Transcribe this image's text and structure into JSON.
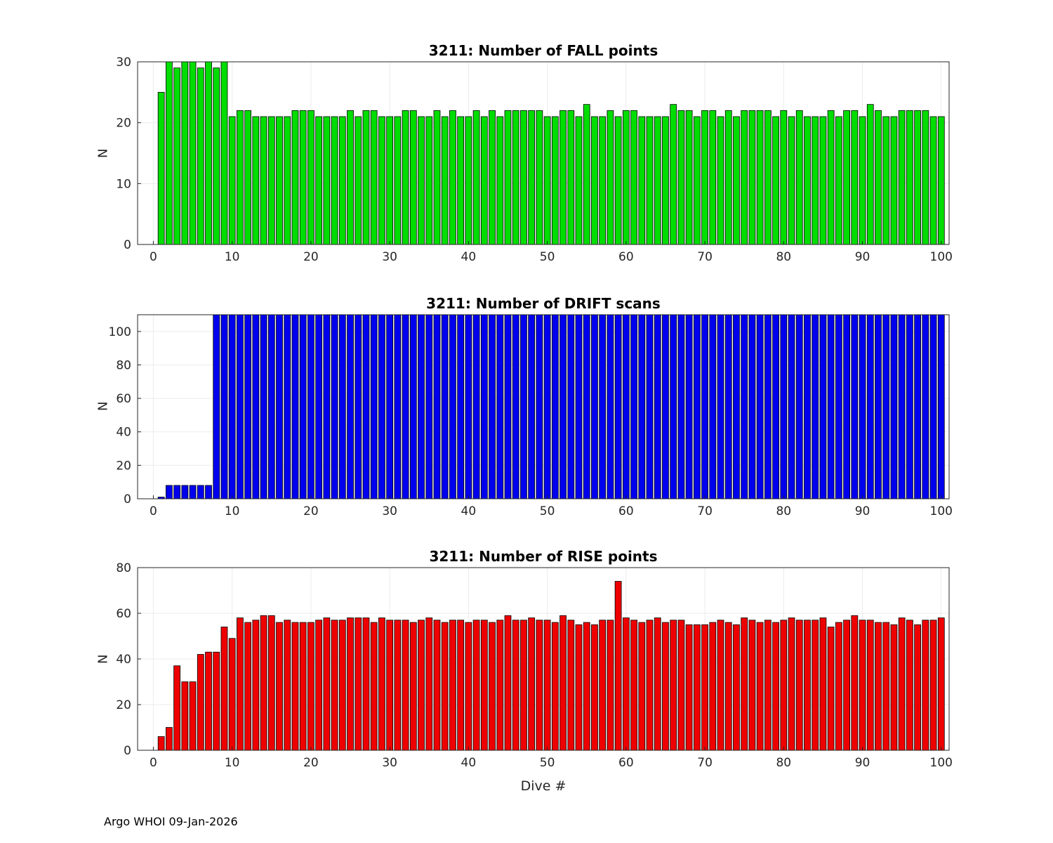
{
  "figure": {
    "footer": "Argo WHOI 09-Jan-2026"
  },
  "chart_data": [
    {
      "type": "bar",
      "name": "fall-points",
      "title": "3211: Number of FALL points",
      "xlabel": "",
      "ylabel": "N",
      "bar_color": "#00dd00",
      "bar_edge_color": "#000000",
      "grid": true,
      "legend": false,
      "xlim": [
        -2,
        101
      ],
      "ylim": [
        0,
        30
      ],
      "xticks": [
        0,
        10,
        20,
        30,
        40,
        50,
        60,
        70,
        80,
        90,
        100
      ],
      "yticks": [
        0,
        10,
        20,
        30
      ],
      "x_start": 1,
      "values": [
        25,
        30,
        29,
        30,
        30,
        29,
        30,
        29,
        30,
        21,
        22,
        22,
        21,
        21,
        21,
        21,
        21,
        22,
        22,
        22,
        21,
        21,
        21,
        21,
        22,
        21,
        22,
        22,
        21,
        21,
        21,
        22,
        22,
        21,
        21,
        22,
        21,
        22,
        21,
        21,
        22,
        21,
        22,
        21,
        22,
        22,
        22,
        22,
        22,
        21,
        21,
        22,
        22,
        21,
        23,
        21,
        21,
        22,
        21,
        22,
        22,
        21,
        21,
        21,
        21,
        23,
        22,
        22,
        21,
        22,
        22,
        21,
        22,
        21,
        22,
        22,
        22,
        22,
        21,
        22,
        21,
        22,
        21,
        21,
        21,
        22,
        21,
        22,
        22,
        21,
        23,
        22,
        21,
        21,
        22,
        22,
        22,
        22,
        21,
        21
      ]
    },
    {
      "type": "bar",
      "name": "drift-scans",
      "title": "3211: Number of DRIFT scans",
      "xlabel": "",
      "ylabel": "N",
      "bar_color": "#0000ee",
      "bar_edge_color": "#000000",
      "grid": true,
      "legend": false,
      "xlim": [
        -2,
        101
      ],
      "ylim": [
        0,
        110
      ],
      "xticks": [
        0,
        10,
        20,
        30,
        40,
        50,
        60,
        70,
        80,
        90,
        100
      ],
      "yticks": [
        0,
        20,
        40,
        60,
        80,
        100
      ],
      "x_start": 1,
      "values": [
        1,
        8,
        8,
        8,
        8,
        8,
        8,
        110,
        110,
        110,
        110,
        110,
        110,
        110,
        110,
        110,
        110,
        110,
        110,
        110,
        110,
        110,
        110,
        110,
        110,
        110,
        110,
        110,
        110,
        110,
        110,
        110,
        110,
        110,
        110,
        110,
        110,
        110,
        110,
        110,
        110,
        110,
        110,
        110,
        110,
        110,
        110,
        110,
        110,
        110,
        110,
        110,
        110,
        110,
        110,
        110,
        110,
        110,
        110,
        110,
        110,
        110,
        110,
        110,
        110,
        110,
        110,
        110,
        110,
        110,
        110,
        110,
        110,
        110,
        110,
        110,
        110,
        110,
        110,
        110,
        110,
        110,
        110,
        110,
        110,
        110,
        110,
        110,
        110,
        110,
        110,
        110,
        110,
        110,
        110,
        110,
        110,
        110,
        110,
        110
      ]
    },
    {
      "type": "bar",
      "name": "rise-points",
      "title": "3211: Number of RISE points",
      "xlabel": "Dive #",
      "ylabel": "N",
      "bar_color": "#ee0000",
      "bar_edge_color": "#000000",
      "grid": true,
      "legend": false,
      "xlim": [
        -2,
        101
      ],
      "ylim": [
        0,
        80
      ],
      "xticks": [
        0,
        10,
        20,
        30,
        40,
        50,
        60,
        70,
        80,
        90,
        100
      ],
      "yticks": [
        0,
        20,
        40,
        60,
        80
      ],
      "x_start": 1,
      "values": [
        6,
        10,
        37,
        30,
        30,
        42,
        43,
        43,
        54,
        49,
        58,
        56,
        57,
        59,
        59,
        56,
        57,
        56,
        56,
        56,
        57,
        58,
        57,
        57,
        58,
        58,
        58,
        56,
        58,
        57,
        57,
        57,
        56,
        57,
        58,
        57,
        56,
        57,
        57,
        56,
        57,
        57,
        56,
        57,
        59,
        57,
        57,
        58,
        57,
        57,
        56,
        59,
        57,
        55,
        56,
        55,
        57,
        57,
        74,
        58,
        57,
        56,
        57,
        58,
        56,
        57,
        57,
        55,
        55,
        55,
        56,
        57,
        56,
        55,
        58,
        57,
        56,
        57,
        56,
        57,
        58,
        57,
        57,
        57,
        58,
        54,
        56,
        57,
        59,
        57,
        57,
        56,
        56,
        55,
        58,
        57,
        55,
        57,
        57,
        58
      ]
    }
  ]
}
